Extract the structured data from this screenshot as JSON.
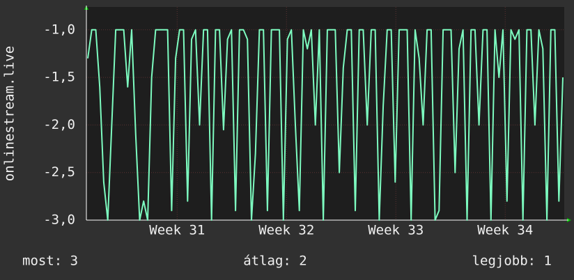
{
  "chart_data": {
    "type": "line",
    "y_label": "onlinestream.live",
    "series": [
      {
        "name": "onlinestream.live",
        "color": "#7dfcc0",
        "values": [
          -1.3,
          -1,
          -1,
          -1.6,
          -2.6,
          -3,
          -2,
          -1,
          -1,
          -1,
          -1.6,
          -1,
          -2.1,
          -3,
          -2.8,
          -3,
          -1.5,
          -1,
          -1,
          -1,
          -1,
          -2.9,
          -1.3,
          -1,
          -1,
          -2.8,
          -1.1,
          -1,
          -2.0,
          -1,
          -1,
          -3,
          -1,
          -1,
          -2.05,
          -1.1,
          -1,
          -2.9,
          -1,
          -1,
          -1.1,
          -3,
          -2.3,
          -1,
          -1,
          -2.9,
          -1,
          -1,
          -1,
          -3,
          -1.1,
          -1,
          -2.0,
          -2.9,
          -1,
          -1.2,
          -1,
          -2,
          -1,
          -3,
          -1,
          -1,
          -1,
          -2.5,
          -1.4,
          -1,
          -1,
          -2.9,
          -1,
          -1,
          -2.0,
          -1,
          -1,
          -3,
          -1.8,
          -1,
          -1,
          -2.6,
          -1,
          -1,
          -1,
          -3,
          -1,
          -1.3,
          -2.0,
          -1,
          -1,
          -3,
          -2.9,
          -1,
          -1,
          -1,
          -2.5,
          -1.2,
          -1,
          -3,
          -1,
          -1,
          -2.0,
          -1,
          -1,
          -3,
          -1,
          -1.5,
          -1,
          -2.8,
          -1,
          -1.1,
          -1,
          -3,
          -1,
          -1,
          -2.0,
          -1,
          -1.2,
          -3,
          -1,
          -1,
          -2.8,
          -1.5
        ]
      }
    ],
    "xlim": [
      30.17,
      34.54
    ],
    "xticks": [
      {
        "value": 31,
        "label": "Week 31"
      },
      {
        "value": 32,
        "label": "Week 32"
      },
      {
        "value": 33,
        "label": "Week 33"
      },
      {
        "value": 34,
        "label": "Week 34"
      }
    ],
    "ylim": [
      -3,
      -0.76
    ],
    "yticks": [
      {
        "value": -3,
        "label": "-3,0"
      },
      {
        "value": -2.5,
        "label": "-2,5"
      },
      {
        "value": -2,
        "label": "-2,0"
      },
      {
        "value": -1.5,
        "label": "-1,5"
      },
      {
        "value": -1,
        "label": "-1,0"
      }
    ],
    "grid": true,
    "legend": [
      "most: 3",
      "átlag: 2",
      "legjobb: 1"
    ]
  }
}
